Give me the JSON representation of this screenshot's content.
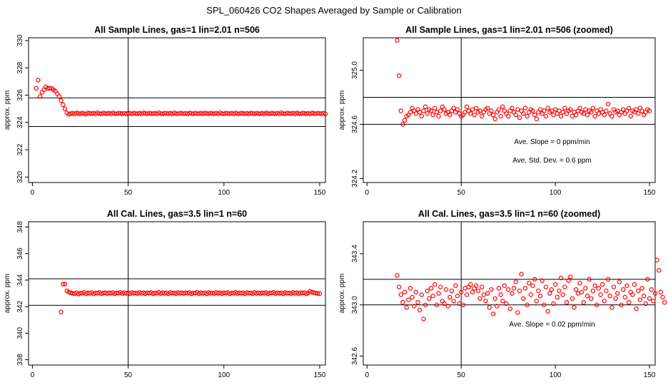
{
  "page_title": "SPL_060426  CO2 Shapes Averaged by Sample or Calibration",
  "colors": {
    "points": "#ff0000",
    "axes": "#000000",
    "background": "#ffffff"
  },
  "chart_data": [
    {
      "type": "scatter",
      "title": "All Sample Lines, gas=1 lin=2.01 n=506",
      "xlabel": "",
      "ylabel": "approx. ppm",
      "xlim": [
        -2,
        153
      ],
      "ylim": [
        319.6,
        330.2
      ],
      "xticks": [
        0,
        50,
        100,
        150
      ],
      "yticks": [
        320,
        322,
        324,
        326,
        328,
        330
      ],
      "hlines": [
        323.7,
        325.8
      ],
      "vline": 50,
      "annotations": [],
      "series": [
        {
          "x_start": 2,
          "x_step": 1,
          "y": [
            326.5,
            327.1,
            325.9,
            326.2,
            326.4,
            326.6,
            326.5,
            326.5,
            326.5,
            326.4,
            326.3,
            326.1,
            325.9,
            325.6,
            325.3,
            325.0,
            324.7,
            324.6,
            324.64,
            324.68,
            324.62,
            324.7,
            324.66,
            324.63,
            324.69,
            324.65,
            324.61,
            324.7,
            324.67,
            324.64,
            324.68,
            324.62,
            324.71,
            324.65,
            324.63,
            324.69,
            324.66,
            324.64,
            324.68,
            324.62,
            324.7,
            324.65,
            324.63,
            324.69,
            324.66,
            324.64,
            324.67,
            324.62,
            324.7,
            324.66,
            324.63,
            324.69,
            324.65,
            324.64,
            324.68,
            324.62,
            324.7,
            324.66,
            324.63,
            324.69,
            324.65,
            324.64,
            324.68,
            324.62,
            324.71,
            324.65,
            324.63,
            324.69,
            324.66,
            324.64,
            324.68,
            324.62,
            324.7,
            324.65,
            324.63,
            324.69,
            324.66,
            324.64,
            324.67,
            324.62,
            324.7,
            324.66,
            324.63,
            324.69,
            324.65,
            324.64,
            324.68,
            324.62,
            324.7,
            324.66,
            324.63,
            324.69,
            324.65,
            324.64,
            324.68,
            324.62,
            324.71,
            324.65,
            324.63,
            324.69,
            324.66,
            324.64,
            324.68,
            324.62,
            324.7,
            324.65,
            324.63,
            324.69,
            324.66,
            324.64,
            324.67,
            324.62,
            324.7,
            324.66,
            324.63,
            324.69,
            324.65,
            324.64,
            324.68,
            324.62,
            324.7,
            324.66,
            324.63,
            324.69,
            324.65,
            324.64,
            324.68,
            324.62,
            324.71,
            324.65,
            324.63,
            324.69,
            324.66,
            324.64,
            324.68,
            324.62,
            324.7,
            324.65,
            324.63,
            324.69,
            324.66,
            324.64,
            324.67,
            324.62,
            324.7,
            324.66,
            324.63,
            324.69,
            324.65,
            324.64,
            324.68,
            324.62
          ]
        }
      ]
    },
    {
      "type": "scatter",
      "title": "All Sample Lines, gas=1 lin=2.01 n=506 (zoomed)",
      "xlabel": "",
      "ylabel": "approx. ppm",
      "xlim": [
        -2,
        153
      ],
      "ylim": [
        324.17,
        325.24
      ],
      "xticks": [
        0,
        50,
        100,
        150
      ],
      "yticks": [
        324.2,
        324.6,
        325.0
      ],
      "ytick_labels": [
        "324.2",
        "324.6",
        "325.0"
      ],
      "hlines": [
        324.6,
        324.8
      ],
      "vline": 50,
      "annotations": [
        "Ave. Slope =  0  ppm/min",
        "Ave. Std. Dev. =  0.6  ppm"
      ],
      "series": [
        {
          "x_start": 16,
          "x_step": 1,
          "y": [
            325.22,
            324.96,
            324.7,
            324.6,
            324.63,
            324.66,
            324.67,
            324.69,
            324.72,
            324.7,
            324.68,
            324.71,
            324.69,
            324.66,
            324.7,
            324.73,
            324.68,
            324.71,
            324.7,
            324.67,
            324.72,
            324.69,
            324.66,
            324.7,
            324.73,
            324.71,
            324.68,
            324.69,
            324.67,
            324.7,
            324.72,
            324.69,
            324.71,
            324.68,
            324.66,
            324.67,
            324.69,
            324.73,
            324.7,
            324.68,
            324.71,
            324.67,
            324.72,
            324.69,
            324.7,
            324.66,
            324.69,
            324.71,
            324.72,
            324.68,
            324.7,
            324.67,
            324.64,
            324.69,
            324.71,
            324.66,
            324.73,
            324.7,
            324.68,
            324.66,
            324.7,
            324.72,
            324.69,
            324.67,
            324.71,
            324.65,
            324.7,
            324.68,
            324.72,
            324.66,
            324.69,
            324.71,
            324.7,
            324.67,
            324.64,
            324.69,
            324.71,
            324.68,
            324.7,
            324.66,
            324.72,
            324.69,
            324.7,
            324.67,
            324.71,
            324.68,
            324.7,
            324.66,
            324.69,
            324.72,
            324.68,
            324.7,
            324.71,
            324.66,
            324.69,
            324.67,
            324.7,
            324.72,
            324.69,
            324.68,
            324.71,
            324.67,
            324.7,
            324.69,
            324.72,
            324.66,
            324.7,
            324.68,
            324.71,
            324.69,
            324.67,
            324.7,
            324.75,
            324.68,
            324.66,
            324.71,
            324.69,
            324.7,
            324.67,
            324.69,
            324.71,
            324.68,
            324.7,
            324.72,
            324.66,
            324.7,
            324.69,
            324.71,
            324.68,
            324.72,
            324.7,
            324.67,
            324.69,
            324.71,
            324.7
          ]
        }
      ]
    },
    {
      "type": "scatter",
      "title": "All Cal. Lines, gas=3.5 lin=1 n=60",
      "xlabel": "",
      "ylabel": "approx. ppm",
      "xlim": [
        -2,
        153
      ],
      "ylim": [
        337.6,
        348.4
      ],
      "xticks": [
        0,
        50,
        100,
        150
      ],
      "yticks": [
        338,
        340,
        342,
        344,
        346,
        348
      ],
      "hlines": [
        342.1,
        344.1
      ],
      "vline": 50,
      "annotations": [],
      "series": [
        {
          "x_start": 15,
          "x_step": 1,
          "y": [
            341.6,
            343.7,
            343.7,
            343.2,
            343.1,
            343.05,
            343.0,
            342.98,
            343.05,
            342.95,
            343.02,
            343.0,
            343.08,
            342.97,
            343.04,
            343.0,
            343.06,
            342.96,
            343.03,
            343.01,
            343.07,
            342.98,
            343.02,
            343.05,
            342.99,
            343.04,
            343.0,
            343.06,
            342.97,
            343.03,
            343.02,
            343.08,
            342.98,
            343.05,
            343.0,
            343.04,
            342.97,
            343.06,
            343.01,
            343.03,
            342.99,
            343.07,
            343.0,
            343.05,
            342.98,
            343.04,
            343.02,
            343.06,
            342.97,
            343.03,
            343.01,
            343.08,
            342.99,
            343.05,
            343.0,
            343.04,
            342.97,
            343.06,
            343.02,
            343.03,
            342.98,
            343.07,
            343.0,
            343.05,
            342.99,
            343.04,
            343.01,
            343.06,
            342.97,
            343.03,
            343.02,
            343.08,
            342.98,
            343.05,
            343.0,
            343.04,
            342.97,
            343.06,
            343.01,
            343.03,
            342.99,
            343.07,
            343.0,
            343.05,
            342.98,
            343.04,
            343.02,
            343.06,
            342.97,
            343.03,
            343.01,
            343.08,
            342.99,
            343.05,
            343.0,
            343.04,
            342.97,
            343.06,
            343.02,
            343.03,
            342.98,
            343.07,
            343.0,
            343.05,
            342.99,
            343.04,
            343.01,
            343.06,
            342.97,
            343.03,
            343.02,
            343.08,
            342.98,
            343.05,
            343.0,
            343.04,
            342.97,
            343.06,
            343.01,
            343.03,
            342.99,
            343.07,
            343.0,
            343.05,
            342.98,
            343.04,
            343.02,
            343.06,
            342.97,
            343.03,
            343.15,
            343.1,
            343.05,
            343.02,
            343.0,
            342.98
          ]
        }
      ]
    },
    {
      "type": "scatter",
      "title": "All Cal. Lines, gas=3.5 lin=1 n=60 (zoomed)",
      "xlabel": "",
      "ylabel": "approx. ppm",
      "xlim": [
        -2,
        153
      ],
      "ylim": [
        342.53,
        343.65
      ],
      "xticks": [
        0,
        50,
        100,
        150
      ],
      "yticks": [
        342.6,
        343.0,
        343.4
      ],
      "ytick_labels": [
        "342.6",
        "343.0",
        "343.4"
      ],
      "hlines": [
        343.0,
        343.2
      ],
      "vline": 50,
      "annotations": [
        "Ave. Slope =  0.02  ppm/min"
      ],
      "series": [
        {
          "x_start": 16,
          "x_step": 1,
          "y": [
            343.23,
            343.14,
            343.08,
            343.02,
            343.1,
            342.98,
            343.04,
            343.13,
            343.06,
            342.99,
            343.1,
            343.02,
            342.96,
            343.08,
            342.89,
            343.0,
            343.11,
            343.05,
            343.13,
            343.07,
            343.16,
            343.0,
            343.09,
            343.14,
            343.03,
            343.01,
            343.12,
            342.99,
            343.06,
            343.11,
            343.03,
            343.15,
            343.07,
            343.01,
            343.1,
            343.0,
            343.13,
            343.08,
            343.14,
            343.16,
            343.1,
            343.13,
            343.15,
            343.11,
            343.05,
            343.14,
            343.08,
            343.03,
            343.09,
            342.98,
            343.12,
            342.93,
            343.05,
            342.99,
            343.13,
            343.08,
            343.03,
            343.15,
            343.01,
            343.12,
            342.97,
            343.09,
            343.13,
            343.18,
            342.94,
            343.11,
            343.24,
            343.05,
            343.13,
            343.0,
            343.17,
            343.08,
            343.15,
            343.2,
            343.03,
            343.11,
            343.07,
            343.19,
            343.0,
            343.14,
            342.95,
            343.09,
            343.12,
            343.01,
            343.16,
            343.06,
            343.11,
            343.21,
            343.08,
            343.14,
            343.02,
            343.19,
            343.22,
            343.05,
            342.98,
            343.12,
            343.09,
            343.17,
            343.1,
            343.02,
            343.13,
            343.07,
            343.2,
            343.05,
            343.11,
            343.15,
            343.0,
            343.13,
            343.08,
            343.16,
            343.03,
            343.11,
            343.2,
            343.07,
            342.98,
            343.14,
            343.05,
            343.09,
            343.18,
            343.0,
            343.12,
            343.06,
            343.15,
            343.02,
            343.1,
            343.08,
            343.16,
            342.97,
            343.11,
            343.04,
            343.13,
            343.07,
            343.01,
            343.2,
            343.05,
            343.12,
            343.03,
            343.09,
            343.35,
            343.27,
            343.1,
            343.06,
            343.02
          ]
        }
      ]
    }
  ]
}
